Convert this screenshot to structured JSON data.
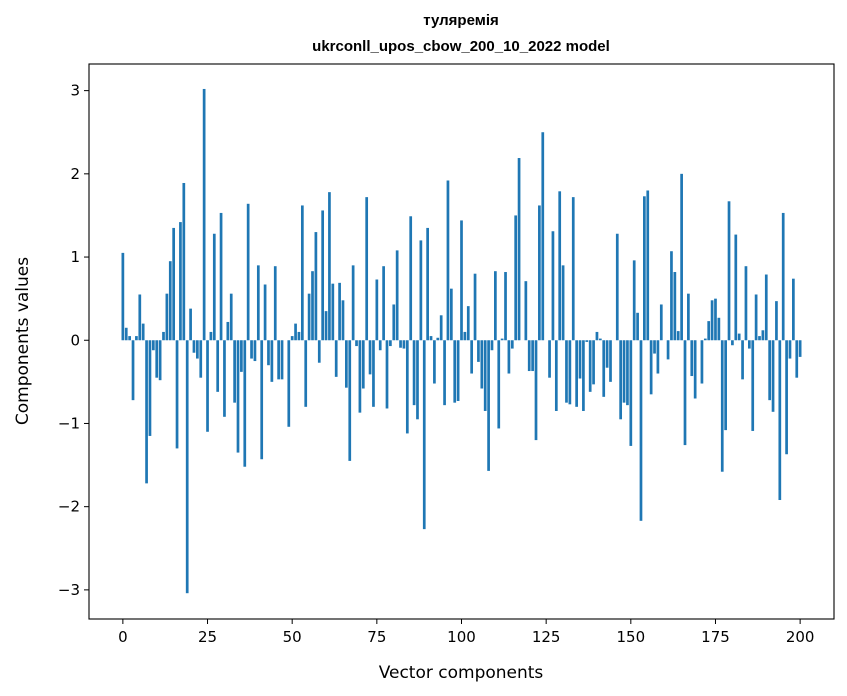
{
  "chart_data": {
    "type": "bar",
    "title": "туляремія",
    "subtitle": "ukrconll_upos_cbow_200_10_2022 model",
    "xlabel": "Vector components",
    "ylabel": "Components values",
    "xlim": [
      -10,
      210
    ],
    "ylim": [
      -3.35,
      3.32
    ],
    "xticks": [
      0,
      25,
      50,
      75,
      100,
      125,
      150,
      175,
      200
    ],
    "yticks": [
      -3,
      -2,
      -1,
      0,
      1,
      2,
      3
    ],
    "ytick_labels": [
      "−3",
      "−2",
      "−1",
      "0",
      "1",
      "2",
      "3"
    ],
    "grid": false,
    "color": "#1f77b4",
    "values": [
      1.05,
      0.15,
      0.05,
      -0.72,
      0.05,
      0.55,
      0.2,
      -1.72,
      -1.15,
      -0.12,
      -0.45,
      -0.48,
      0.1,
      0.56,
      0.95,
      1.35,
      -1.3,
      1.42,
      1.89,
      -3.04,
      0.38,
      -0.15,
      -0.22,
      -0.45,
      3.02,
      -1.1,
      0.1,
      1.28,
      -0.62,
      1.53,
      -0.92,
      0.22,
      0.56,
      -0.75,
      -1.35,
      -0.38,
      -1.52,
      1.64,
      -0.22,
      -0.25,
      0.9,
      -1.43,
      0.67,
      -0.3,
      -0.5,
      0.89,
      -0.47,
      -0.47,
      0.0,
      -1.04,
      0.05,
      0.2,
      0.1,
      1.62,
      -0.8,
      0.56,
      0.83,
      1.3,
      -0.27,
      1.56,
      0.35,
      1.78,
      0.68,
      -0.44,
      0.69,
      0.48,
      -0.57,
      -1.45,
      0.9,
      -0.07,
      -0.87,
      -0.58,
      1.72,
      -0.41,
      -0.8,
      0.73,
      -0.12,
      0.89,
      -0.82,
      -0.07,
      0.43,
      1.08,
      -0.09,
      -0.1,
      -1.12,
      1.49,
      -0.78,
      -0.95,
      1.2,
      -2.27,
      1.35,
      0.05,
      -0.52,
      0.03,
      0.3,
      -0.78,
      1.92,
      0.62,
      -0.75,
      -0.73,
      1.44,
      0.1,
      0.41,
      -0.4,
      0.8,
      -0.26,
      -0.58,
      -0.85,
      -1.57,
      -0.12,
      0.83,
      -1.06,
      0.02,
      0.82,
      -0.4,
      -0.1,
      1.5,
      2.19,
      0.0,
      0.71,
      -0.37,
      -0.37,
      -1.2,
      1.62,
      2.5,
      0.0,
      -0.45,
      1.31,
      -0.85,
      1.79,
      0.9,
      -0.75,
      -0.77,
      1.72,
      -0.8,
      -0.46,
      -0.85,
      -0.02,
      -0.62,
      -0.53,
      0.1,
      0.02,
      -0.68,
      -0.33,
      -0.5,
      0.0,
      1.28,
      -0.95,
      -0.75,
      -0.78,
      -1.27,
      0.96,
      0.33,
      -2.17,
      1.73,
      1.8,
      -0.65,
      -0.16,
      -0.4,
      0.43,
      0.0,
      -0.23,
      1.07,
      0.82,
      0.11,
      2.0,
      -1.26,
      0.56,
      -0.43,
      -0.7,
      0.0,
      -0.52,
      0.02,
      0.23,
      0.48,
      0.5,
      0.27,
      -1.58,
      -1.08,
      1.67,
      -0.06,
      1.27,
      0.08,
      -0.47,
      0.89,
      -0.1,
      -1.09,
      0.55,
      0.05,
      0.12,
      0.79,
      -0.72,
      -0.86,
      0.47,
      -1.92,
      1.53,
      -1.37,
      -0.22,
      0.74,
      -0.45,
      -0.2
    ]
  }
}
